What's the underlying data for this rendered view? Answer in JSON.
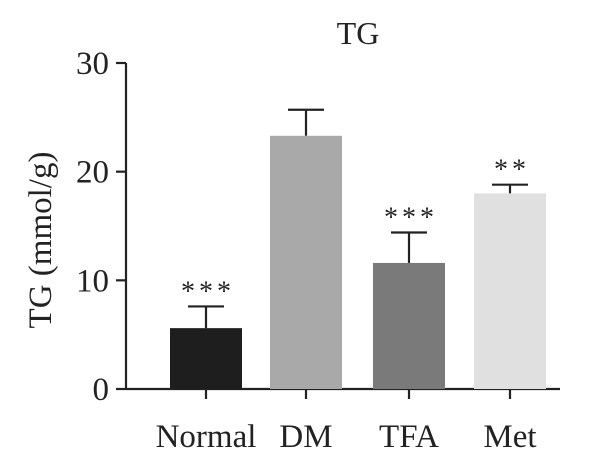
{
  "chart_data": {
    "type": "bar",
    "title": "TG",
    "ylabel": "TG (mmol/g)",
    "xlabel": "",
    "ylim": [
      0,
      30
    ],
    "yticks": [
      "0",
      "10",
      "20",
      "30"
    ],
    "grid": false,
    "categories": [
      "Normal",
      "DM",
      "TFA",
      "Met"
    ],
    "values": [
      5.6,
      23.3,
      11.6,
      18.0
    ],
    "errors": [
      2.0,
      2.4,
      2.8,
      0.8
    ],
    "significance": [
      "***",
      "",
      "***",
      "**"
    ],
    "colors": [
      "#1e1e1e",
      "#a9a9a9",
      "#7a7a7a",
      "#e0e0e0"
    ]
  }
}
